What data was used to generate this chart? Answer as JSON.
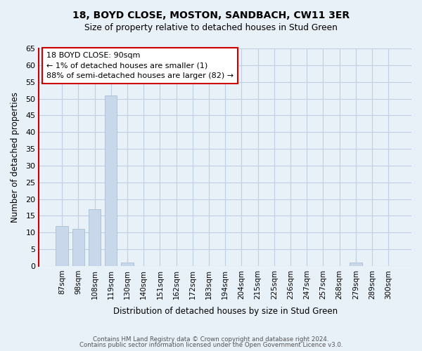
{
  "title1": "18, BOYD CLOSE, MOSTON, SANDBACH, CW11 3ER",
  "title2": "Size of property relative to detached houses in Stud Green",
  "xlabel": "Distribution of detached houses by size in Stud Green",
  "ylabel": "Number of detached properties",
  "categories": [
    "87sqm",
    "98sqm",
    "108sqm",
    "119sqm",
    "130sqm",
    "140sqm",
    "151sqm",
    "162sqm",
    "172sqm",
    "183sqm",
    "194sqm",
    "204sqm",
    "215sqm",
    "225sqm",
    "236sqm",
    "247sqm",
    "257sqm",
    "268sqm",
    "279sqm",
    "289sqm",
    "300sqm"
  ],
  "values": [
    12,
    11,
    17,
    51,
    1,
    0,
    0,
    0,
    0,
    0,
    0,
    0,
    0,
    0,
    0,
    0,
    0,
    0,
    1,
    0,
    0
  ],
  "bar_color": "#c8d8ea",
  "bar_edge_color": "#a0b8cc",
  "highlight_bar_index": 0,
  "highlight_edge_color": "#cc0000",
  "ylim": [
    0,
    65
  ],
  "yticks": [
    0,
    5,
    10,
    15,
    20,
    25,
    30,
    35,
    40,
    45,
    50,
    55,
    60,
    65
  ],
  "annotation_title": "18 BOYD CLOSE: 90sqm",
  "annotation_line1": "← 1% of detached houses are smaller (1)",
  "annotation_line2": "88% of semi-detached houses are larger (82) →",
  "annotation_box_color": "#ffffff",
  "annotation_box_edge_color": "#cc0000",
  "footer1": "Contains HM Land Registry data © Crown copyright and database right 2024.",
  "footer2": "Contains public sector information licensed under the Open Government Licence v3.0.",
  "grid_color": "#c0d0e0",
  "background_color": "#e8f0f8"
}
